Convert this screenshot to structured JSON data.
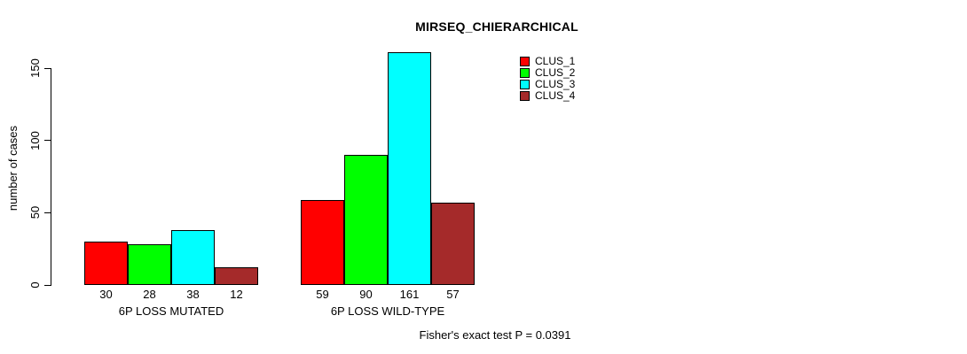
{
  "chart_data": {
    "type": "bar",
    "title": "MIRSEQ_CHIERARCHICAL",
    "ylabel": "number of cases",
    "xlabel": "",
    "categories": [
      "6P LOSS MUTATED",
      "6P LOSS WILD-TYPE"
    ],
    "series": [
      {
        "name": "CLUS_1",
        "color": "#FF0000",
        "values": [
          30,
          59
        ]
      },
      {
        "name": "CLUS_2",
        "color": "#00FF00",
        "values": [
          28,
          90
        ]
      },
      {
        "name": "CLUS_3",
        "color": "#00FFFF",
        "values": [
          38,
          161
        ]
      },
      {
        "name": "CLUS_4",
        "color": "#A52A2A",
        "values": [
          12,
          57
        ]
      }
    ],
    "y_ticks": [
      0,
      50,
      100,
      150
    ],
    "ylim": [
      0,
      165
    ],
    "grid": false,
    "legend_position": "top-right",
    "bar_border_color": "#000000",
    "annotation": "Fisher's exact test P = 0.0391"
  }
}
